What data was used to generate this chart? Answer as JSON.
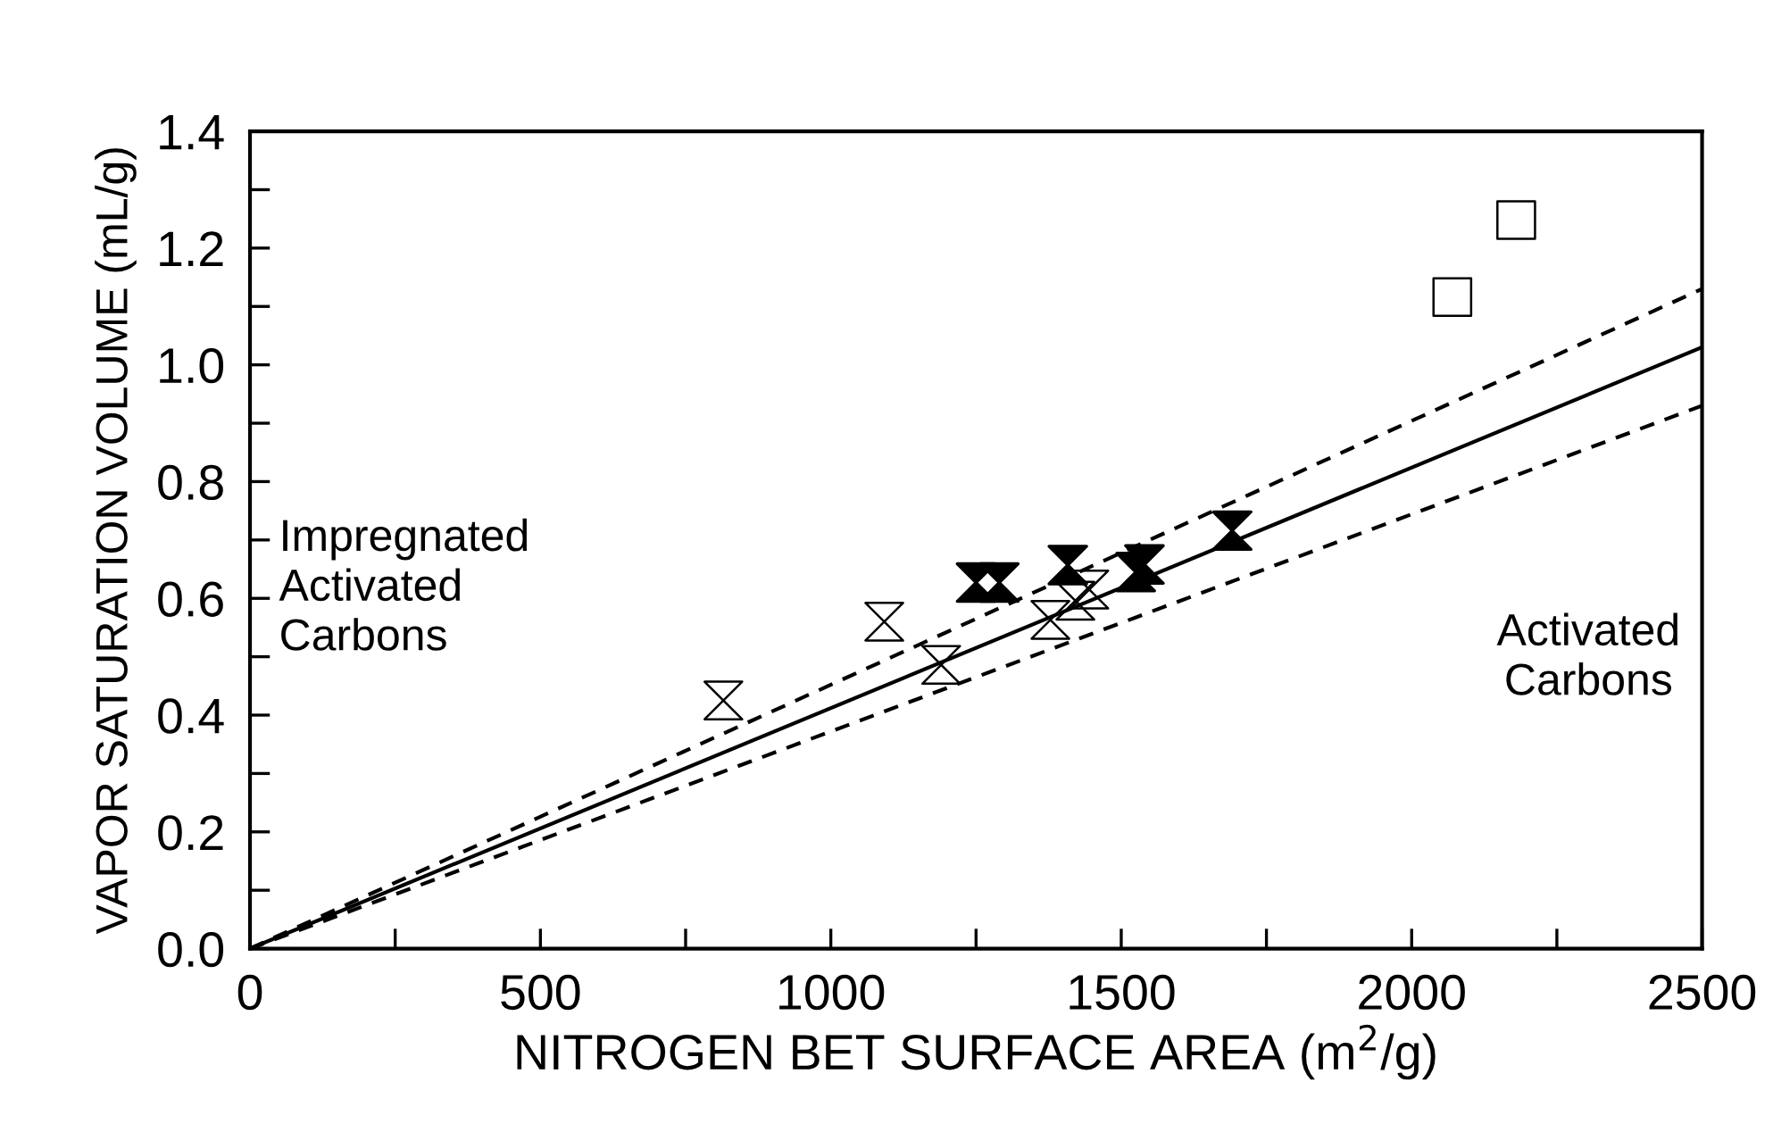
{
  "chart_data": {
    "type": "scatter",
    "xlabel": "NITROGEN BET SURFACE AREA (m$^{2}$/g)",
    "ylabel": "VAPOR SATURATION VOLUME (mL/g)",
    "annotations": [
      "Impregnated\nActivated\nCarbons",
      "Activated\nCarbons"
    ],
    "series": [
      {
        "color": "#000000",
        "x": [
          815,
          1092,
          1190,
          1378,
          1421,
          1445
        ],
        "values": [
          0.425,
          0.56,
          0.486,
          0.563,
          0.596,
          0.615
        ]
      },
      {
        "marker": "diamond",
        "color": "#000000",
        "x": [
          1250,
          1290,
          1408,
          1525,
          1540,
          1691
        ],
        "values": [
          0.627,
          0.627,
          0.657,
          0.645,
          0.658,
          0.716
        ]
      },
      {
        "marker": "square",
        "color": "#000000",
        "x": [
          2070,
          2180
        ],
        "values": [
          1.116,
          1.248
        ]
      },
      {
        "type": "line",
        "line_style": "solid",
        "color": "#000000",
        "x": [
          0,
          2500
        ],
        "values": [
          0,
          1.03
        ]
      },
      {
        "type": "line",
        "line_style": "dashed",
        "color": "#000000",
        "x": [
          0,
          2500
        ],
        "values": [
          0,
          1.13
        ]
      },
      {
        "type": "line",
        "line_style": "dashed",
        "color": "#000000",
        "x": [
          0,
          2500
        ],
        "values": [
          0,
          0.93
        ]
      }
    ],
    "xlim": [
      0,
      2500
    ],
    "xticks": [
      0,
      {
        "value": 250,
        "label": null
      },
      500,
      {
        "value": 750,
        "label": null
      },
      1000,
      {
        "value": 1250,
        "label": null
      },
      1500,
      {
        "value": 1750,
        "label": null
      },
      2000,
      {
        "value": 2250,
        "label": null
      },
      2500
    ],
    "ylim": [
      0,
      1.4
    ],
    "yticks": [
      {
        "value": 0,
        "label": "0.0"
      },
      {
        "value": 0.1,
        "label": null
      },
      {
        "value": 0.2,
        "label": "0.2"
      },
      {
        "value": 0.3,
        "label": null
      },
      {
        "value": 0.4,
        "label": "0.4"
      },
      {
        "value": 0.5,
        "label": null
      },
      {
        "value": 0.6,
        "label": "0.6"
      },
      {
        "value": 0.7,
        "label": null
      },
      {
        "value": 0.8,
        "label": "0.8"
      },
      {
        "value": 0.9,
        "label": null
      },
      {
        "value": 1.0,
        "label": "1.0"
      },
      {
        "value": 1.1,
        "label": null
      },
      {
        "value": 1.2,
        "label": "1.2"
      },
      {
        "value": 1.3,
        "label": null
      },
      {
        "value": 1.4,
        "label": "1.4"
      }
    ],
    "grid": false,
    "legend": false
  }
}
